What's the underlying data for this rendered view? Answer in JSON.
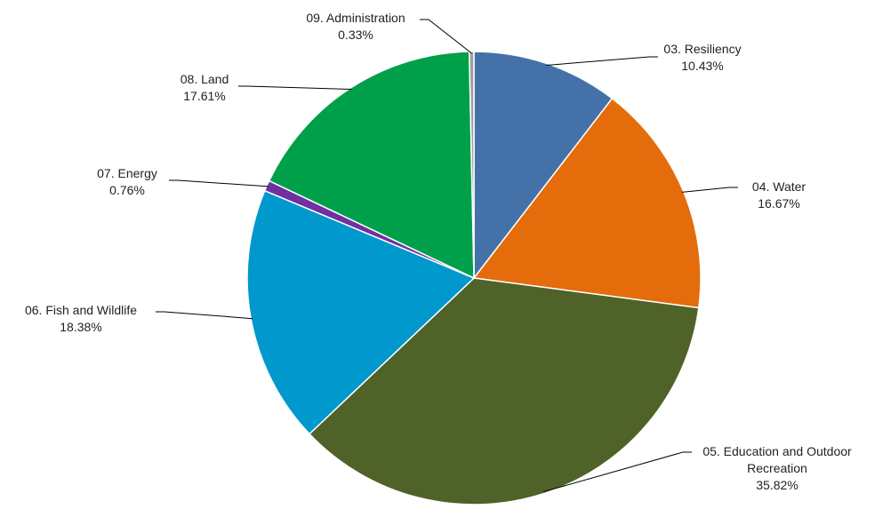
{
  "chart_data": {
    "type": "pie",
    "title": "",
    "slices": [
      {
        "label": "03. Resiliency",
        "label_lines": [
          "03. Resiliency"
        ],
        "value": 10.43,
        "display": "10.43%",
        "color": "#4472A8"
      },
      {
        "label": "04. Water",
        "label_lines": [
          "04. Water"
        ],
        "value": 16.67,
        "display": "16.67%",
        "color": "#E46C0A"
      },
      {
        "label": "05. Education and Outdoor Recreation",
        "label_lines": [
          "05. Education and Outdoor",
          "Recreation"
        ],
        "value": 35.82,
        "display": "35.82%",
        "color": "#4F6228"
      },
      {
        "label": "06. Fish and Wildlife",
        "label_lines": [
          "06. Fish and Wildlife"
        ],
        "value": 18.38,
        "display": "18.38%",
        "color": "#0098CD"
      },
      {
        "label": "07. Energy",
        "label_lines": [
          "07. Energy"
        ],
        "value": 0.76,
        "display": "0.76%",
        "color": "#7030A0"
      },
      {
        "label": "08. Land",
        "label_lines": [
          "08. Land"
        ],
        "value": 17.61,
        "display": "17.61%",
        "color": "#00A04A"
      },
      {
        "label": "09. Administration",
        "label_lines": [
          "09. Administration"
        ],
        "value": 0.33,
        "display": "0.33%",
        "color": "#A0A0A0"
      }
    ],
    "start_angle": "12 o'clock",
    "direction": "clockwise",
    "legend": "none"
  }
}
